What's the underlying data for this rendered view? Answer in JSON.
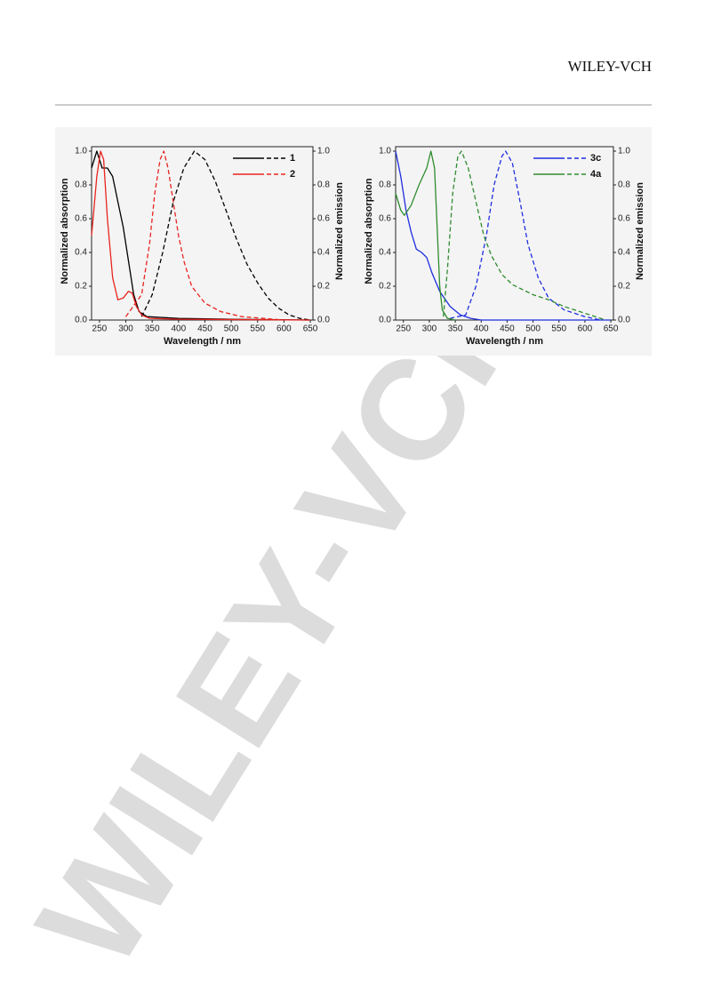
{
  "header": {
    "brand": "WILEY-VCH"
  },
  "watermark": "WILEY-VCH",
  "chart_data": [
    {
      "type": "line",
      "xlabel": "Wavelength / nm",
      "ylabel": "Normalized absorption",
      "y2label": "Normalized emission",
      "xlim": [
        235,
        655
      ],
      "xticks": [
        250,
        300,
        350,
        400,
        450,
        500,
        550,
        600,
        650
      ],
      "ylim": [
        0,
        1
      ],
      "yticks": [
        {
          "value": 0,
          "label": "0.0"
        },
        0.2,
        0.4,
        0.6,
        0.8,
        {
          "value": 1,
          "label": "1.0"
        }
      ],
      "y2lim": [
        0,
        1
      ],
      "y2ticks": [
        {
          "value": 0,
          "label": "0.0"
        },
        0.2,
        0.4,
        0.6,
        0.8,
        {
          "value": 1,
          "label": "1.0"
        }
      ],
      "legend": "upper right",
      "series": [
        {
          "name": "1",
          "color": "#000000",
          "absorption": {
            "x": [
              235,
              245,
              255,
              265,
              275,
              285,
              295,
              305,
              315,
              325,
              340,
              400,
              500,
              650
            ],
            "values": [
              0.9,
              1.0,
              0.9,
              0.9,
              0.85,
              0.7,
              0.55,
              0.35,
              0.15,
              0.05,
              0.02,
              0.01,
              0.005,
              0
            ]
          },
          "emission": {
            "axis": "y2",
            "x": [
              330,
              350,
              370,
              390,
              410,
              430,
              450,
              470,
              490,
              510,
              530,
              550,
              570,
              590,
              610,
              630,
              650
            ],
            "values": [
              0.02,
              0.15,
              0.4,
              0.7,
              0.9,
              1.0,
              0.95,
              0.82,
              0.65,
              0.48,
              0.33,
              0.22,
              0.13,
              0.07,
              0.03,
              0.01,
              0
            ]
          }
        },
        {
          "name": "2",
          "color": "#e8231f",
          "absorption": {
            "x": [
              235,
              245,
              252,
              258,
              265,
              275,
              285,
              295,
              305,
              312,
              320,
              330,
              345,
              400,
              650
            ],
            "values": [
              0.5,
              0.85,
              1.0,
              0.95,
              0.6,
              0.25,
              0.12,
              0.13,
              0.17,
              0.16,
              0.08,
              0.03,
              0.01,
              0.005,
              0
            ]
          },
          "emission": {
            "axis": "y2",
            "x": [
              300,
              330,
              345,
              355,
              365,
              372,
              380,
              390,
              400,
              410,
              425,
              450,
              480,
              520,
              600
            ],
            "values": [
              0.02,
              0.15,
              0.45,
              0.75,
              0.95,
              1.0,
              0.9,
              0.7,
              0.5,
              0.35,
              0.2,
              0.1,
              0.05,
              0.02,
              0
            ]
          }
        }
      ]
    },
    {
      "type": "line",
      "xlabel": "Wavelength / nm",
      "ylabel": "Normalized absorption",
      "y2label": "Normalized emission",
      "xlim": [
        235,
        655
      ],
      "xticks": [
        250,
        300,
        350,
        400,
        450,
        500,
        550,
        600,
        650
      ],
      "ylim": [
        0,
        1
      ],
      "yticks": [
        {
          "value": 0,
          "label": "0.0"
        },
        0.2,
        0.4,
        0.6,
        0.8,
        {
          "value": 1,
          "label": "1.0"
        }
      ],
      "y2lim": [
        0,
        1
      ],
      "y2ticks": [
        {
          "value": 0,
          "label": "0.0"
        },
        0.2,
        0.4,
        0.6,
        0.8,
        {
          "value": 1,
          "label": "1.0"
        }
      ],
      "legend": "upper right",
      "series": [
        {
          "name": "3c",
          "color": "#1f2de0",
          "absorption": {
            "x": [
              235,
              245,
              255,
              265,
              275,
              285,
              295,
              305,
              320,
              340,
              360,
              380,
              400,
              650
            ],
            "values": [
              1.0,
              0.85,
              0.65,
              0.52,
              0.42,
              0.4,
              0.37,
              0.28,
              0.17,
              0.08,
              0.03,
              0.01,
              0,
              0
            ]
          },
          "emission": {
            "axis": "y2",
            "x": [
              340,
              370,
              390,
              410,
              425,
              440,
              447,
              460,
              475,
              490,
              510,
              530,
              560,
              600,
              630
            ],
            "values": [
              0.01,
              0.03,
              0.2,
              0.5,
              0.8,
              0.97,
              1.0,
              0.93,
              0.7,
              0.45,
              0.25,
              0.13,
              0.06,
              0.02,
              0
            ]
          }
        },
        {
          "name": "4a",
          "color": "#2e8b2e",
          "absorption": {
            "x": [
              235,
              245,
              252,
              265,
              280,
              295,
              303,
              310,
              315,
              320,
              325,
              335,
              350
            ],
            "values": [
              0.75,
              0.65,
              0.62,
              0.68,
              0.8,
              0.9,
              1.0,
              0.9,
              0.55,
              0.2,
              0.06,
              0.01,
              0
            ]
          },
          "emission": {
            "axis": "y2",
            "x": [
              327,
              335,
              345,
              355,
              362,
              375,
              390,
              405,
              420,
              440,
              460,
              480,
              500,
              530,
              560,
              590,
              620,
              640
            ],
            "values": [
              0.02,
              0.3,
              0.75,
              0.97,
              1.0,
              0.9,
              0.7,
              0.5,
              0.38,
              0.27,
              0.21,
              0.18,
              0.15,
              0.12,
              0.08,
              0.05,
              0.02,
              0
            ]
          }
        }
      ]
    }
  ]
}
